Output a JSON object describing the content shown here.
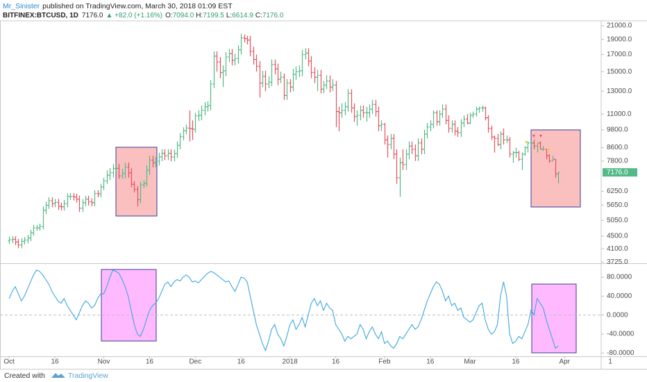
{
  "header": {
    "author": "Mr_Sinister",
    "published": "published on TradingView.com, March 30, 2018 01:09 EST",
    "symbol": "BITFINEX:BTCUSD, 1D",
    "last": "7176.0",
    "change": "▲ +82.0 (+1.16%)",
    "o_label": "O:",
    "o": "7094.0",
    "h_label": "H:",
    "h": "7199.5",
    "l_label": "L:",
    "l": "6614.9",
    "c_label": "C:",
    "c": "7176.0"
  },
  "footer": {
    "created": "Created with",
    "brand": "TradingView"
  },
  "chart_data": {
    "type": "ohlc",
    "log_scale": true,
    "up_color": "#53b987",
    "down_color": "#eb4d5c",
    "xlim": [
      "2017-09-28",
      "2018-04-13"
    ],
    "ylim": [
      3690,
      21760
    ],
    "yticks": [
      {
        "value": 21000,
        "label": "21000.0"
      },
      {
        "value": 19000,
        "label": "19000.0"
      },
      {
        "value": 17000,
        "label": "17000.0"
      },
      {
        "value": 15000,
        "label": "15000.0"
      },
      {
        "value": 13000,
        "label": "13000.0"
      },
      {
        "value": 11000,
        "label": "11000.0"
      },
      {
        "value": 9800,
        "label": "9800.0"
      },
      {
        "value": 8600,
        "label": "8600.0"
      },
      {
        "value": 7800,
        "label": "7800.0"
      },
      {
        "value": 6250,
        "label": "6250.0"
      },
      {
        "value": 5650,
        "label": "5650.0"
      },
      {
        "value": 5050,
        "label": "5050.0"
      },
      {
        "value": 4500,
        "label": "4500.0"
      },
      {
        "value": 4100,
        "label": "4100.0"
      },
      {
        "value": 3725,
        "label": "3725.0"
      }
    ],
    "last_price_label": "7176.0",
    "last_price_color": "#53b987",
    "xticks": [
      {
        "value": "2017-10-01",
        "label": "Oct"
      },
      {
        "value": "2017-10-16",
        "label": "16"
      },
      {
        "value": "2017-11-01",
        "label": "Nov"
      },
      {
        "value": "2017-11-16",
        "label": "16"
      },
      {
        "value": "2017-12-01",
        "label": "Dec"
      },
      {
        "value": "2017-12-16",
        "label": "16"
      },
      {
        "value": "2018-01-01",
        "label": "2018"
      },
      {
        "value": "2018-01-16",
        "label": "16"
      },
      {
        "value": "2018-02-01",
        "label": "Feb"
      },
      {
        "value": "2018-02-16",
        "label": "16"
      },
      {
        "value": "2018-03-01",
        "label": "Mar"
      },
      {
        "value": "2018-03-16",
        "label": "16"
      },
      {
        "value": "2018-04-01",
        "label": "Apr"
      },
      {
        "value": "2018-04-16",
        "label": "1"
      }
    ],
    "x": [
      "2017-10-01",
      "2017-10-02",
      "2017-10-03",
      "2017-10-04",
      "2017-10-05",
      "2017-10-06",
      "2017-10-07",
      "2017-10-08",
      "2017-10-09",
      "2017-10-10",
      "2017-10-11",
      "2017-10-12",
      "2017-10-13",
      "2017-10-14",
      "2017-10-15",
      "2017-10-16",
      "2017-10-17",
      "2017-10-18",
      "2017-10-19",
      "2017-10-20",
      "2017-10-21",
      "2017-10-22",
      "2017-10-23",
      "2017-10-24",
      "2017-10-25",
      "2017-10-26",
      "2017-10-27",
      "2017-10-28",
      "2017-10-29",
      "2017-10-30",
      "2017-10-31",
      "2017-11-01",
      "2017-11-02",
      "2017-11-03",
      "2017-11-04",
      "2017-11-05",
      "2017-11-06",
      "2017-11-07",
      "2017-11-08",
      "2017-11-09",
      "2017-11-10",
      "2017-11-11",
      "2017-11-12",
      "2017-11-13",
      "2017-11-14",
      "2017-11-15",
      "2017-11-16",
      "2017-11-17",
      "2017-11-18",
      "2017-11-19",
      "2017-11-20",
      "2017-11-21",
      "2017-11-22",
      "2017-11-23",
      "2017-11-24",
      "2017-11-25",
      "2017-11-26",
      "2017-11-27",
      "2017-11-28",
      "2017-11-29",
      "2017-11-30",
      "2017-12-01",
      "2017-12-02",
      "2017-12-03",
      "2017-12-04",
      "2017-12-05",
      "2017-12-06",
      "2017-12-07",
      "2017-12-08",
      "2017-12-09",
      "2017-12-10",
      "2017-12-11",
      "2017-12-12",
      "2017-12-13",
      "2017-12-14",
      "2017-12-15",
      "2017-12-16",
      "2017-12-17",
      "2017-12-18",
      "2017-12-19",
      "2017-12-20",
      "2017-12-21",
      "2017-12-22",
      "2017-12-23",
      "2017-12-24",
      "2017-12-25",
      "2017-12-26",
      "2017-12-27",
      "2017-12-28",
      "2017-12-29",
      "2017-12-30",
      "2017-12-31",
      "2018-01-01",
      "2018-01-02",
      "2018-01-03",
      "2018-01-04",
      "2018-01-05",
      "2018-01-06",
      "2018-01-07",
      "2018-01-08",
      "2018-01-09",
      "2018-01-10",
      "2018-01-11",
      "2018-01-12",
      "2018-01-13",
      "2018-01-14",
      "2018-01-15",
      "2018-01-16",
      "2018-01-17",
      "2018-01-18",
      "2018-01-19",
      "2018-01-20",
      "2018-01-21",
      "2018-01-22",
      "2018-01-23",
      "2018-01-24",
      "2018-01-25",
      "2018-01-26",
      "2018-01-27",
      "2018-01-28",
      "2018-01-29",
      "2018-01-30",
      "2018-01-31",
      "2018-02-01",
      "2018-02-02",
      "2018-02-03",
      "2018-02-04",
      "2018-02-05",
      "2018-02-06",
      "2018-02-07",
      "2018-02-08",
      "2018-02-09",
      "2018-02-10",
      "2018-02-11",
      "2018-02-12",
      "2018-02-13",
      "2018-02-14",
      "2018-02-15",
      "2018-02-16",
      "2018-02-17",
      "2018-02-18",
      "2018-02-19",
      "2018-02-20",
      "2018-02-21",
      "2018-02-22",
      "2018-02-23",
      "2018-02-24",
      "2018-02-25",
      "2018-02-26",
      "2018-02-27",
      "2018-02-28",
      "2018-03-01",
      "2018-03-02",
      "2018-03-03",
      "2018-03-04",
      "2018-03-05",
      "2018-03-06",
      "2018-03-07",
      "2018-03-08",
      "2018-03-09",
      "2018-03-10",
      "2018-03-11",
      "2018-03-12",
      "2018-03-13",
      "2018-03-14",
      "2018-03-15",
      "2018-03-16",
      "2018-03-17",
      "2018-03-18",
      "2018-03-19",
      "2018-03-20",
      "2018-03-21",
      "2018-03-22",
      "2018-03-23",
      "2018-03-24",
      "2018-03-25",
      "2018-03-26",
      "2018-03-27",
      "2018-03-28",
      "2018-03-29",
      "2018-03-30"
    ],
    "open": [
      4350,
      4380,
      4400,
      4310,
      4220,
      4330,
      4370,
      4440,
      4610,
      4780,
      4780,
      4830,
      5440,
      5640,
      5830,
      5710,
      5760,
      5600,
      5580,
      5710,
      6010,
      6020,
      5990,
      5900,
      5520,
      5750,
      5900,
      5780,
      5750,
      6150,
      6130,
      6450,
      6740,
      7030,
      7160,
      7380,
      7390,
      6990,
      7120,
      7460,
      7150,
      6580,
      6340,
      5880,
      6550,
      6620,
      7300,
      7850,
      7700,
      7790,
      8040,
      8250,
      8100,
      8250,
      8030,
      8230,
      8750,
      9320,
      9730,
      9930,
      9880,
      9840,
      10850,
      10900,
      11300,
      11600,
      11700,
      13700,
      16800,
      16100,
      14900,
      15100,
      16700,
      17100,
      16300,
      16500,
      17600,
      19200,
      19100,
      18900,
      17400,
      16400,
      15600,
      13800,
      14500,
      13700,
      13900,
      15800,
      15300,
      14200,
      14400,
      12600,
      13800,
      13400,
      14700,
      15000,
      15100,
      17000,
      17200,
      16200,
      14900,
      14400,
      14600,
      13200,
      13600,
      14000,
      13400,
      13600,
      11200,
      11100,
      11300,
      11600,
      12800,
      11500,
      10800,
      10900,
      11300,
      11100,
      11100,
      11400,
      11800,
      11200,
      10100,
      10200,
      9100,
      8800,
      9200,
      8200,
      6900,
      7700,
      7600,
      8200,
      8700,
      8500,
      8100,
      8900,
      8500,
      9500,
      10000,
      10200,
      11100,
      10400,
      11000,
      11400,
      10500,
      9900,
      10200,
      9700,
      9600,
      10300,
      10600,
      10300,
      10900,
      11000,
      11400,
      11500,
      11500,
      10700,
      9900,
      9300,
      9200,
      8800,
      9500,
      9100,
      9100,
      8200,
      8300,
      8300,
      7900,
      8200,
      8600,
      8900,
      8900,
      8700,
      8900,
      8500,
      8500,
      8100,
      7800,
      7900,
      7094
    ],
    "high": [
      4480,
      4500,
      4500,
      4410,
      4430,
      4470,
      4540,
      4710,
      4880,
      4880,
      4930,
      5590,
      5790,
      5980,
      5980,
      5910,
      5910,
      5750,
      5860,
      6160,
      6170,
      6170,
      6140,
      6050,
      5900,
      6050,
      6050,
      5930,
      6300,
      6300,
      6600,
      6890,
      7280,
      7410,
      7630,
      7640,
      7640,
      7370,
      7710,
      7710,
      7400,
      6730,
      6490,
      6700,
      6770,
      7550,
      8100,
      8100,
      8040,
      8290,
      8500,
      8500,
      8500,
      8500,
      8480,
      9000,
      9570,
      9980,
      10180,
      11300,
      10500,
      11100,
      11300,
      11700,
      12000,
      12100,
      14100,
      17400,
      17400,
      16700,
      15700,
      17300,
      17700,
      17700,
      17100,
      18200,
      19800,
      19700,
      19500,
      19500,
      18000,
      17000,
      16200,
      15100,
      15100,
      14500,
      16400,
      16400,
      15900,
      15000,
      14800,
      14200,
      14200,
      15300,
      15600,
      15700,
      17600,
      17800,
      17800,
      16800,
      15500,
      15200,
      15200,
      14000,
      14600,
      14600,
      14200,
      14000,
      11600,
      11900,
      12000,
      13200,
      13200,
      11900,
      11300,
      11700,
      11700,
      11600,
      11800,
      12200,
      12200,
      11600,
      10500,
      10300,
      9400,
      9500,
      9500,
      8500,
      8000,
      8500,
      8500,
      9000,
      9000,
      8800,
      9200,
      9200,
      9800,
      10300,
      10500,
      11300,
      11300,
      11300,
      11800,
      11800,
      10900,
      10500,
      10500,
      10000,
      10600,
      10900,
      11000,
      11100,
      11200,
      11600,
      11600,
      11700,
      11600,
      10900,
      10100,
      9400,
      9500,
      9700,
      9900,
      9400,
      9300,
      8400,
      8600,
      8400,
      8300,
      8700,
      9000,
      9100,
      9100,
      8900,
      9000,
      8700,
      8500,
      8200,
      8100,
      7900,
      7199.5
    ],
    "low": [
      4250,
      4280,
      4210,
      4120,
      4120,
      4230,
      4270,
      4340,
      4510,
      4680,
      4680,
      4730,
      5290,
      5490,
      5560,
      5560,
      5450,
      5430,
      5430,
      5560,
      5860,
      5840,
      5750,
      5370,
      5370,
      5600,
      5630,
      5600,
      5600,
      5980,
      5980,
      6300,
      6590,
      6780,
      6910,
      7130,
      6840,
      6840,
      6870,
      6900,
      6430,
      6190,
      5600,
      5730,
      6400,
      6470,
      7050,
      7450,
      7450,
      7540,
      7790,
      7850,
      7850,
      7780,
      7780,
      7980,
      8500,
      9070,
      9480,
      9000,
      9100,
      9600,
      10450,
      10500,
      10900,
      11200,
      11300,
      13300,
      15000,
      14300,
      13400,
      14500,
      16100,
      15700,
      15700,
      15900,
      17000,
      18600,
      18300,
      16800,
      15800,
      15000,
      12400,
      13400,
      13000,
      13300,
      13500,
      14700,
      13600,
      13800,
      12200,
      12200,
      12900,
      13000,
      14100,
      14400,
      14500,
      16400,
      15600,
      14300,
      13800,
      13000,
      12800,
      12800,
      13200,
      12900,
      13000,
      10000,
      9700,
      10700,
      10900,
      11200,
      11100,
      10400,
      10100,
      10500,
      10700,
      10400,
      10700,
      11000,
      10800,
      9700,
      9700,
      8800,
      8000,
      8500,
      7900,
      6600,
      6000,
      7300,
      7300,
      7900,
      8200,
      7800,
      7800,
      8200,
      8200,
      9200,
      9700,
      9900,
      10100,
      10100,
      10700,
      10200,
      9600,
      9600,
      9400,
      9300,
      9300,
      10000,
      10200,
      10200,
      10700,
      10800,
      11100,
      11200,
      10500,
      9600,
      9100,
      8300,
      8700,
      8500,
      8800,
      8900,
      8000,
      7700,
      8000,
      7800,
      7300,
      8100,
      8300,
      8700,
      8500,
      8300,
      8500,
      8400,
      7900,
      7700,
      7800,
      6900,
      6614.9
    ],
    "close": [
      4380,
      4400,
      4310,
      4220,
      4330,
      4370,
      4440,
      4610,
      4780,
      4780,
      4830,
      5440,
      5640,
      5830,
      5710,
      5760,
      5600,
      5580,
      5710,
      6010,
      6020,
      5990,
      5900,
      5520,
      5750,
      5900,
      5780,
      5750,
      6150,
      6130,
      6450,
      6740,
      7030,
      7160,
      7380,
      7390,
      6990,
      7120,
      7460,
      7150,
      6580,
      6340,
      5880,
      6550,
      6620,
      7300,
      7850,
      7700,
      7790,
      8040,
      8250,
      8100,
      8250,
      8030,
      8230,
      8750,
      9320,
      9730,
      9930,
      9880,
      9840,
      10850,
      10900,
      11300,
      11600,
      11700,
      13700,
      16800,
      16100,
      14900,
      15100,
      16700,
      17100,
      16300,
      16500,
      17600,
      19200,
      19100,
      18900,
      17400,
      16400,
      15600,
      13800,
      14500,
      13700,
      13900,
      15800,
      15300,
      14200,
      14400,
      12600,
      13800,
      13400,
      14700,
      15000,
      15100,
      17000,
      17200,
      16200,
      14900,
      14400,
      14600,
      13200,
      13600,
      14000,
      13400,
      13600,
      11200,
      11100,
      11300,
      11600,
      12800,
      11500,
      10800,
      10900,
      11300,
      11100,
      11100,
      11400,
      11800,
      11200,
      10100,
      10200,
      9100,
      8800,
      9200,
      8200,
      6900,
      7700,
      7600,
      8200,
      8700,
      8500,
      8100,
      8900,
      8500,
      9500,
      10000,
      10200,
      11100,
      10400,
      11000,
      11400,
      10500,
      9900,
      10200,
      9700,
      9600,
      10300,
      10600,
      10300,
      10900,
      11000,
      11400,
      11500,
      11500,
      10700,
      9900,
      9300,
      9200,
      8800,
      9500,
      9100,
      9100,
      8200,
      8300,
      8300,
      7900,
      8200,
      8600,
      8900,
      8900,
      8700,
      8900,
      8500,
      8500,
      8100,
      7800,
      7900,
      7094,
      7176
    ],
    "oscillator": {
      "type": "line",
      "color": "#3da5e0",
      "ylim": [
        -87,
        108
      ],
      "reference_line": 0,
      "yticks": [
        {
          "value": 80,
          "label": "80.0000"
        },
        {
          "value": 40,
          "label": "40.0000"
        },
        {
          "value": 0,
          "label": "0.0000"
        },
        {
          "value": -40,
          "label": "-40.0000"
        },
        {
          "value": -80,
          "label": "-80.0000"
        }
      ],
      "values": [
        35,
        50,
        60,
        45,
        30,
        40,
        55,
        70,
        85,
        95,
        92,
        85,
        75,
        65,
        50,
        40,
        30,
        25,
        35,
        20,
        10,
        0,
        -10,
        5,
        20,
        30,
        25,
        15,
        20,
        35,
        45,
        45,
        60,
        80,
        95,
        92,
        88,
        75,
        60,
        40,
        10,
        -20,
        -40,
        -45,
        -30,
        -10,
        10,
        20,
        25,
        35,
        50,
        65,
        70,
        60,
        70,
        75,
        72,
        80,
        85,
        80,
        70,
        72,
        68,
        75,
        82,
        88,
        92,
        90,
        85,
        80,
        75,
        70,
        72,
        60,
        50,
        65,
        80,
        78,
        70,
        40,
        10,
        -20,
        -40,
        -60,
        -75,
        -55,
        -30,
        -20,
        -40,
        -50,
        -65,
        -45,
        -20,
        -10,
        -30,
        -20,
        -5,
        -25,
        0,
        25,
        35,
        20,
        30,
        10,
        25,
        15,
        10,
        -20,
        -30,
        -40,
        -55,
        -45,
        -50,
        -45,
        -40,
        -20,
        -30,
        -50,
        -35,
        -25,
        -40,
        -50,
        -35,
        -60,
        -55,
        -65,
        -70,
        -60,
        -45,
        -50,
        -40,
        -30,
        -20,
        -30,
        -25,
        -10,
        10,
        30,
        45,
        60,
        70,
        65,
        50,
        30,
        40,
        20,
        25,
        10,
        15,
        -5,
        -10,
        -15,
        -10,
        5,
        20,
        25,
        -10,
        -30,
        -40,
        -35,
        -20,
        40,
        70,
        40,
        -40,
        -60,
        -55,
        -45,
        -50,
        -35,
        -20,
        10,
        0,
        35,
        25,
        15,
        -10,
        -30,
        -50,
        -70,
        -65
      ]
    }
  }
}
